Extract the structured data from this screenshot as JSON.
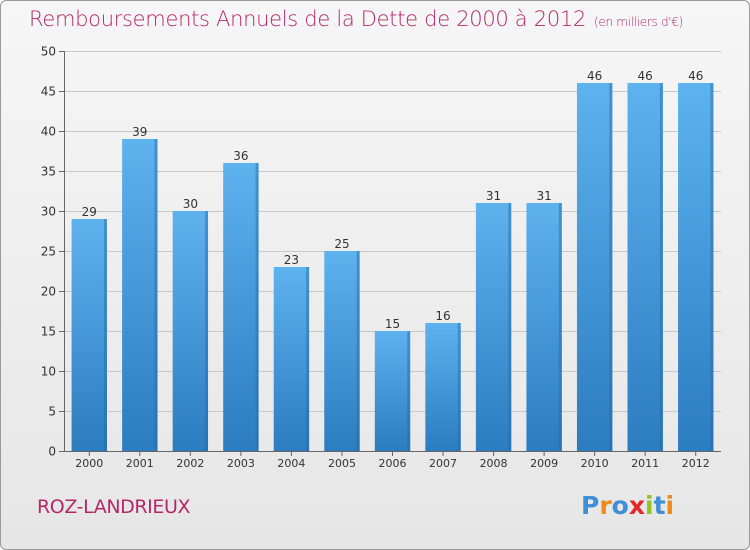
{
  "title": "Remboursements Annuels de la Dette de 2000 à 2012",
  "unit": "(en milliers d'€)",
  "city": "ROZ-LANDRIEUX",
  "logo": {
    "text": "Proxiti",
    "letters": [
      {
        "ch": "P",
        "color": "#3e8fd6"
      },
      {
        "ch": "r",
        "color": "#f08a1c"
      },
      {
        "ch": "o",
        "color": "#3e8fd6"
      },
      {
        "ch": "x",
        "color": "#e3262a"
      },
      {
        "ch": "i",
        "color": "#8fc31f"
      },
      {
        "ch": "t",
        "color": "#3e8fd6"
      },
      {
        "ch": "i",
        "color": "#f08a1c"
      }
    ]
  },
  "colors": {
    "accent": "#b4286a",
    "bar_light": "#5aaeea",
    "bar_dark": "#2e7fc2",
    "grid": "#c8c8c8"
  },
  "chart_data": {
    "type": "bar",
    "title": "Remboursements Annuels de la Dette de 2000 à 2012",
    "xlabel": "",
    "ylabel": "",
    "categories": [
      "2000",
      "2001",
      "2002",
      "2003",
      "2004",
      "2005",
      "2006",
      "2007",
      "2008",
      "2009",
      "2010",
      "2011",
      "2012"
    ],
    "values": [
      29,
      39,
      30,
      36,
      23,
      25,
      15,
      16,
      31,
      31,
      46,
      46,
      46
    ],
    "ylim": [
      0,
      50
    ],
    "yticks": [
      0,
      5,
      10,
      15,
      20,
      25,
      30,
      35,
      40,
      45,
      50
    ],
    "grid": true,
    "legend": "none"
  }
}
